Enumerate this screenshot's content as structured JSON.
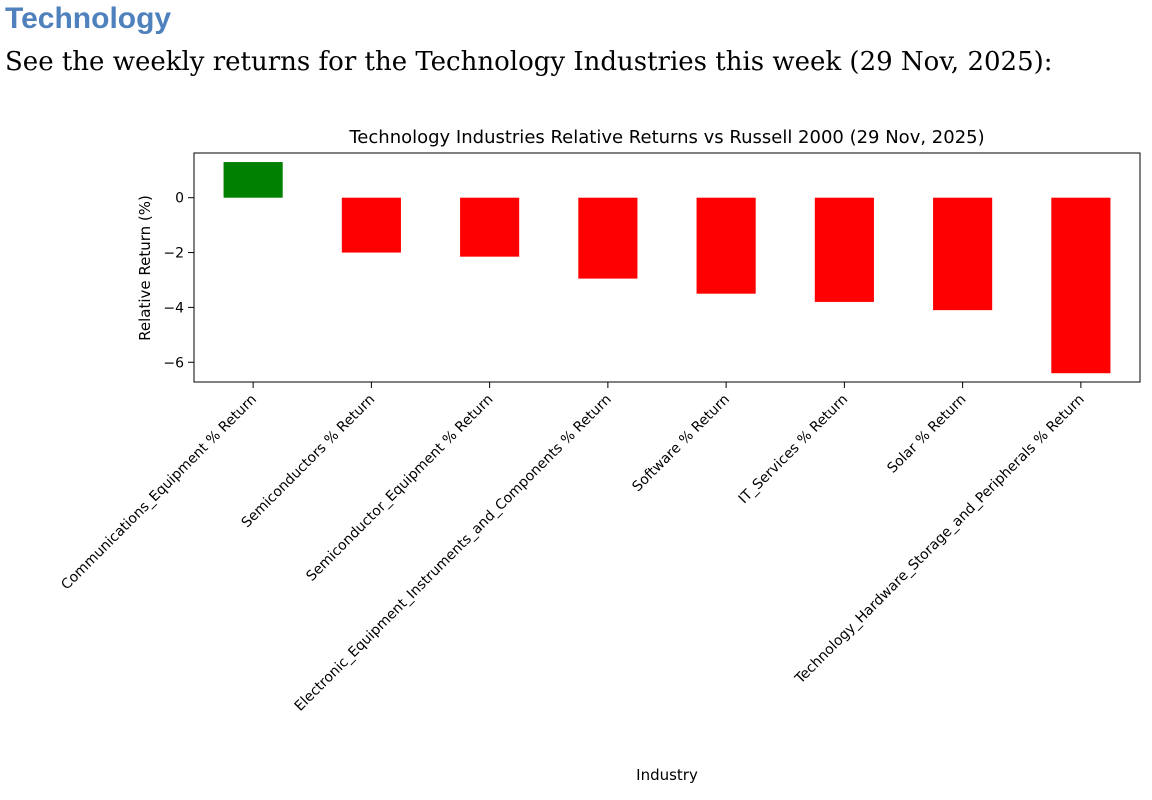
{
  "page": {
    "heading": "Technology",
    "intro": "See the weekly returns for the Technology Industries this week (29 Nov, 2025):"
  },
  "colors": {
    "heading": "#4f81bd",
    "positive": "#008000",
    "negative": "#ff0000"
  },
  "chart_data": {
    "type": "bar",
    "title": "Technology Industries Relative Returns vs Russell 2000 (29 Nov, 2025)",
    "xlabel": "Industry",
    "ylabel": "Relative Return (%)",
    "categories": [
      "Communications_Equipment % Return",
      "Semiconductors % Return",
      "Semiconductor_Equipment % Return",
      "Electronic_Equipment_Instruments_and_Components % Return",
      "Software % Return",
      "IT_Services % Return",
      "Solar % Return",
      "Technology_Hardware_Storage_and_Peripherals % Return"
    ],
    "values": [
      1.3,
      -2.0,
      -2.15,
      -2.95,
      -3.5,
      -3.8,
      -4.1,
      -6.4
    ],
    "ylim": [
      -6.72,
      1.63
    ],
    "yticks": [
      0,
      -2,
      -4,
      -6
    ],
    "ytick_labels": [
      "0",
      "−2",
      "−4",
      "−6"
    ],
    "grid": false,
    "legend": "none"
  }
}
